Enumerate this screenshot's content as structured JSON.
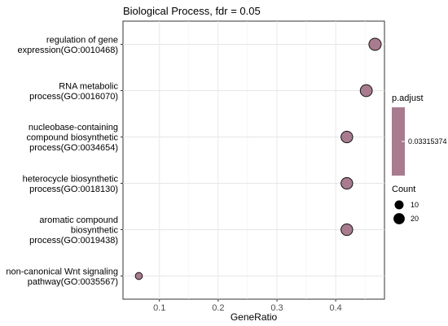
{
  "chart_data": {
    "type": "scatter",
    "title": "Biological Process, fdr = 0.05",
    "xlabel": "GeneRatio",
    "ylabel": "",
    "xlim": [
      0.038,
      0.483
    ],
    "x_ticks": [
      "0.1",
      "0.2",
      "0.3",
      "0.4"
    ],
    "x_tick_values": [
      0.1,
      0.2,
      0.3,
      0.4
    ],
    "grid": true,
    "point_color": "#A87B8E",
    "categories": [
      [
        "regulation of gene",
        "expression(GO:0010468)"
      ],
      [
        "RNA metabolic",
        "process(GO:0016070)"
      ],
      [
        "nucleobase-containing",
        "compound biosynthetic",
        "process(GO:0034654)"
      ],
      [
        "heterocycle biosynthetic",
        "process(GO:0018130)"
      ],
      [
        "aromatic compound",
        "biosynthetic",
        "process(GO:0019438)"
      ],
      [
        "non-canonical Wnt signaling",
        "pathway(GO:0035567)"
      ]
    ],
    "points": [
      {
        "gene_ratio": 0.467,
        "count": 15
      },
      {
        "gene_ratio": 0.452,
        "count": 14
      },
      {
        "gene_ratio": 0.419,
        "count": 13
      },
      {
        "gene_ratio": 0.419,
        "count": 13
      },
      {
        "gene_ratio": 0.419,
        "count": 13
      },
      {
        "gene_ratio": 0.065,
        "count": 2
      }
    ],
    "legend_color": {
      "title": "p.adjust",
      "label": "0.03315374",
      "color": "#A87B8E"
    },
    "legend_size": {
      "title": "Count",
      "entries": [
        {
          "label": "10",
          "value": 10
        },
        {
          "label": "20",
          "value": 20
        }
      ]
    }
  }
}
